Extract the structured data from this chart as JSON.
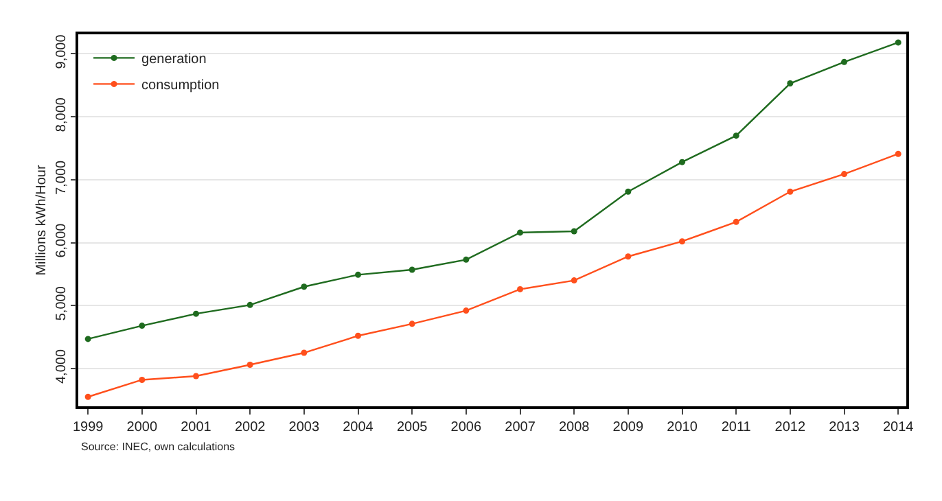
{
  "chart_data": {
    "type": "line",
    "ylabel": "Millions kWh/Hour",
    "x": [
      1999,
      2000,
      2001,
      2002,
      2003,
      2004,
      2005,
      2006,
      2007,
      2008,
      2009,
      2010,
      2011,
      2012,
      2013,
      2014
    ],
    "series": [
      {
        "name": "generation",
        "color": "#1f6b1f",
        "values": [
          4470,
          4680,
          4870,
          5010,
          5300,
          5490,
          5570,
          5730,
          6160,
          6180,
          6810,
          7280,
          7700,
          8530,
          8870,
          9180
        ]
      },
      {
        "name": "consumption",
        "color": "#ff4f1c",
        "values": [
          3550,
          3820,
          3880,
          4060,
          4250,
          4520,
          4710,
          4920,
          5260,
          5400,
          5780,
          6020,
          6330,
          6810,
          7090,
          7410
        ]
      }
    ],
    "xlim": [
      1998.82,
      2014.15
    ],
    "xticks": [
      1999,
      2000,
      2001,
      2002,
      2003,
      2004,
      2005,
      2006,
      2007,
      2008,
      2009,
      2010,
      2011,
      2012,
      2013,
      2014
    ],
    "ylim": [
      3400,
      9310
    ],
    "yticks": [
      {
        "value": 4000,
        "label": "4,000"
      },
      {
        "value": 5000,
        "label": "5,000"
      },
      {
        "value": 6000,
        "label": "6,000"
      },
      {
        "value": 7000,
        "label": "7,000"
      },
      {
        "value": 8000,
        "label": "8,000"
      },
      {
        "value": 9000,
        "label": "9,000"
      }
    ],
    "grid": "y",
    "legend": "top left",
    "marker": "circle",
    "line_style": "solid",
    "annotations": [
      "Source: INEC, own calculations"
    ]
  }
}
